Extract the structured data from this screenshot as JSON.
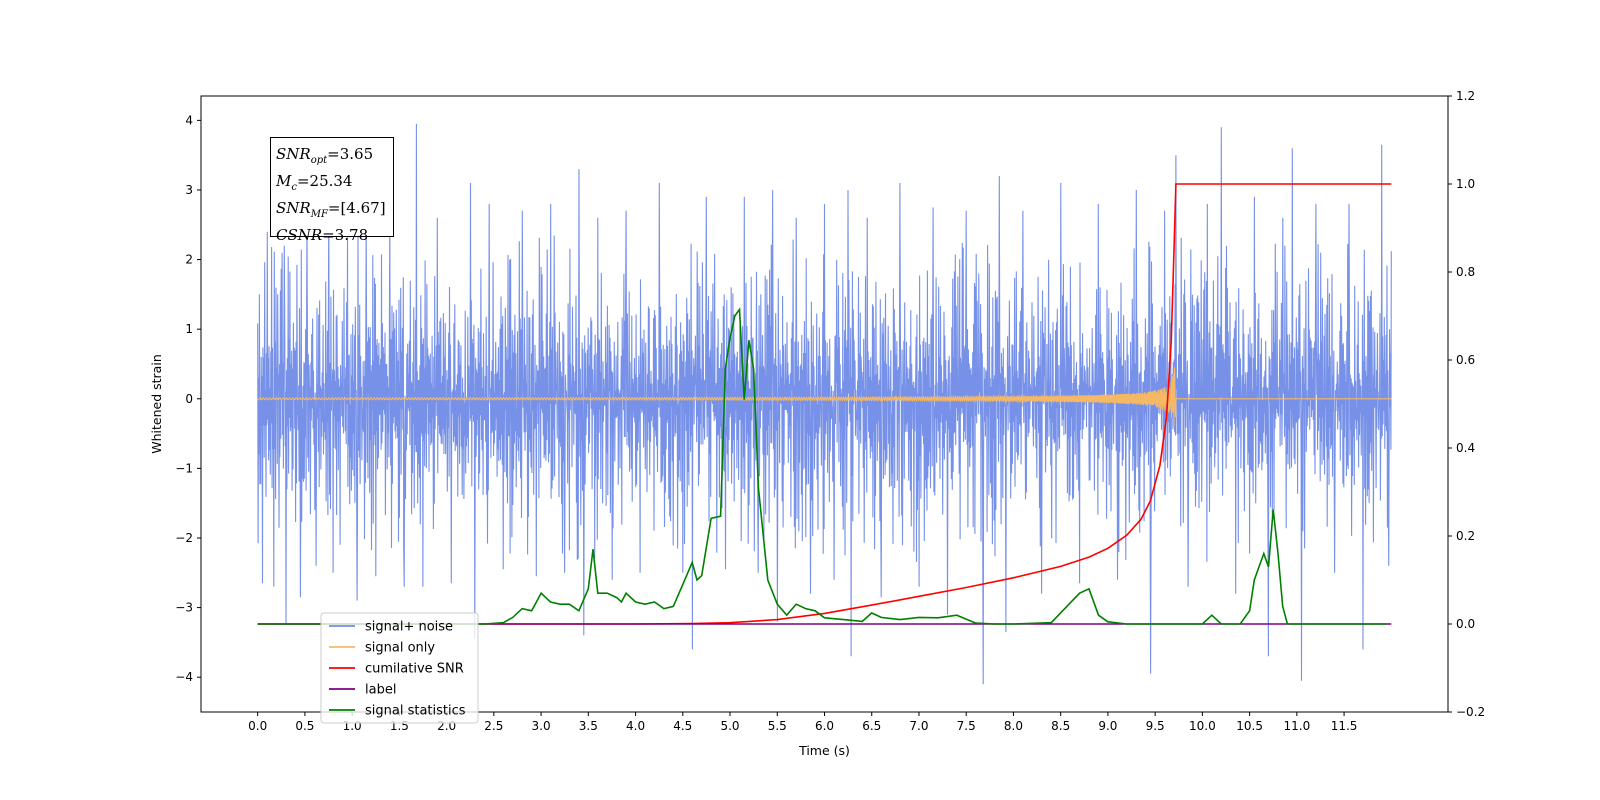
{
  "chart_data": {
    "type": "line",
    "xlabel": "Time (s)",
    "ylabel": "Whitened strain",
    "ylabel_right": "",
    "xlim": [
      -0.6,
      12.6
    ],
    "ylim": [
      -4.5,
      4.35
    ],
    "ylim_right": [
      -0.2,
      1.2
    ],
    "x_ticks": [
      0.0,
      0.5,
      1.0,
      1.5,
      2.0,
      2.5,
      3.0,
      3.5,
      4.0,
      4.5,
      5.0,
      5.5,
      6.0,
      6.5,
      7.0,
      7.5,
      8.0,
      8.5,
      9.0,
      9.5,
      10.0,
      10.5,
      11.0,
      11.5
    ],
    "x_tick_labels": [
      "0.0",
      "0.5",
      "1.0",
      "1.5",
      "2.0",
      "2.5",
      "3.0",
      "3.5",
      "4.0",
      "4.5",
      "5.0",
      "5.5",
      "6.0",
      "6.5",
      "7.0",
      "7.5",
      "8.0",
      "8.5",
      "9.0",
      "9.5",
      "10.0",
      "10.5",
      "11.0",
      "11.5"
    ],
    "y_ticks": [
      -4,
      -3,
      -2,
      -1,
      0,
      1,
      2,
      3,
      4
    ],
    "y_tick_labels": [
      "−4",
      "−3",
      "−2",
      "−1",
      "0",
      "1",
      "2",
      "3",
      "4"
    ],
    "y_right_ticks": [
      -0.2,
      0.0,
      0.2,
      0.4,
      0.6,
      0.8,
      1.0,
      1.2
    ],
    "y_right_tick_labels": [
      "−0.2",
      "0.0",
      "0.2",
      "0.4",
      "0.6",
      "0.8",
      "1.0",
      "1.2"
    ],
    "legend_position": "lower-left",
    "series": [
      {
        "name": "signal+ noise",
        "axis": "left",
        "color": "#6f8be6",
        "style": "dense-noise",
        "x_range": [
          0.0,
          12.0
        ],
        "spikes": [
          [
            0.02,
            1.5
          ],
          [
            0.05,
            -2.65
          ],
          [
            0.1,
            2.4
          ],
          [
            0.17,
            -2.7
          ],
          [
            0.28,
            2.2
          ],
          [
            0.3,
            -3.25
          ],
          [
            0.45,
            -2.85
          ],
          [
            0.52,
            2.5
          ],
          [
            0.62,
            -2.4
          ],
          [
            0.75,
            2.9
          ],
          [
            0.8,
            -2.5
          ],
          [
            0.95,
            2.4
          ],
          [
            1.05,
            -2.9
          ],
          [
            1.15,
            2.5
          ],
          [
            1.25,
            -2.55
          ],
          [
            1.4,
            2.6
          ],
          [
            1.55,
            -2.7
          ],
          [
            1.68,
            3.95
          ],
          [
            1.75,
            -2.7
          ],
          [
            1.9,
            2.6
          ],
          [
            2.05,
            -2.65
          ],
          [
            2.25,
            3.1
          ],
          [
            2.3,
            -3.45
          ],
          [
            2.45,
            2.8
          ],
          [
            2.6,
            -2.45
          ],
          [
            2.8,
            2.7
          ],
          [
            2.95,
            -2.55
          ],
          [
            3.1,
            2.8
          ],
          [
            3.25,
            -2.5
          ],
          [
            3.4,
            3.3
          ],
          [
            3.45,
            -3.4
          ],
          [
            3.6,
            2.6
          ],
          [
            3.75,
            -2.6
          ],
          [
            3.9,
            2.7
          ],
          [
            4.05,
            -2.5
          ],
          [
            4.25,
            3.1
          ],
          [
            4.5,
            -2.5
          ],
          [
            4.6,
            -3.6
          ],
          [
            4.75,
            2.9
          ],
          [
            4.95,
            -2.45
          ],
          [
            5.15,
            2.9
          ],
          [
            5.3,
            -2.5
          ],
          [
            5.45,
            3.0
          ],
          [
            5.5,
            -3.2
          ],
          [
            5.7,
            2.6
          ],
          [
            5.85,
            -2.8
          ],
          [
            6.0,
            2.8
          ],
          [
            6.1,
            -2.6
          ],
          [
            6.25,
            3.0
          ],
          [
            6.28,
            -3.7
          ],
          [
            6.45,
            2.6
          ],
          [
            6.6,
            -2.85
          ],
          [
            6.8,
            3.1
          ],
          [
            7.0,
            -2.7
          ],
          [
            7.15,
            2.75
          ],
          [
            7.3,
            -3.1
          ],
          [
            7.5,
            2.7
          ],
          [
            7.68,
            -4.1
          ],
          [
            7.85,
            3.2
          ],
          [
            7.92,
            -3.35
          ],
          [
            8.1,
            2.7
          ],
          [
            8.3,
            -2.8
          ],
          [
            8.5,
            3.1
          ],
          [
            8.7,
            -2.65
          ],
          [
            8.9,
            2.8
          ],
          [
            9.1,
            -2.6
          ],
          [
            9.3,
            3.0
          ],
          [
            9.45,
            -3.95
          ],
          [
            9.6,
            2.7
          ],
          [
            9.72,
            3.5
          ],
          [
            9.85,
            -2.7
          ],
          [
            10.05,
            2.8
          ],
          [
            10.2,
            3.9
          ],
          [
            10.35,
            -2.8
          ],
          [
            10.55,
            2.9
          ],
          [
            10.7,
            -3.7
          ],
          [
            10.85,
            2.6
          ],
          [
            10.95,
            3.6
          ],
          [
            11.05,
            -4.05
          ],
          [
            11.2,
            2.8
          ],
          [
            11.4,
            -2.5
          ],
          [
            11.55,
            2.8
          ],
          [
            11.7,
            -3.6
          ],
          [
            11.9,
            3.65
          ],
          [
            11.97,
            -2.4
          ]
        ]
      },
      {
        "name": "signal only",
        "axis": "left",
        "color": "#f5b865",
        "style": "chirp",
        "x_range": [
          0.0,
          12.0
        ],
        "merger_time": 9.72,
        "peak_amplitude": 0.8
      },
      {
        "name": "cumilative SNR",
        "axis": "right",
        "color": "#ff0000",
        "x": [
          0.0,
          4.0,
          4.6,
          5.0,
          5.5,
          6.0,
          6.5,
          7.0,
          7.5,
          8.0,
          8.5,
          8.8,
          9.0,
          9.2,
          9.35,
          9.45,
          9.55,
          9.62,
          9.67,
          9.7,
          9.72,
          10.0,
          11.0,
          11.5,
          12.0
        ],
        "values": [
          0.0,
          0.0,
          0.001,
          0.003,
          0.01,
          0.024,
          0.043,
          0.063,
          0.083,
          0.105,
          0.131,
          0.152,
          0.172,
          0.202,
          0.238,
          0.28,
          0.36,
          0.47,
          0.64,
          0.85,
          1.0,
          1.0,
          1.0,
          1.0,
          1.0
        ]
      },
      {
        "name": "label",
        "axis": "right",
        "color": "#800080",
        "x": [
          0.0,
          12.0
        ],
        "values": [
          0.0,
          0.0
        ]
      },
      {
        "name": "signal statistics",
        "axis": "right",
        "color": "#008000",
        "x": [
          0.0,
          2.4,
          2.6,
          2.7,
          2.8,
          2.9,
          2.95,
          3.0,
          3.1,
          3.2,
          3.3,
          3.4,
          3.5,
          3.55,
          3.6,
          3.7,
          3.8,
          3.85,
          3.9,
          4.0,
          4.1,
          4.2,
          4.3,
          4.4,
          4.5,
          4.6,
          4.65,
          4.7,
          4.8,
          4.9,
          4.95,
          5.0,
          5.05,
          5.1,
          5.15,
          5.2,
          5.25,
          5.3,
          5.4,
          5.5,
          5.6,
          5.7,
          5.8,
          5.9,
          6.0,
          6.2,
          6.4,
          6.5,
          6.6,
          6.8,
          7.0,
          7.2,
          7.4,
          7.6,
          7.8,
          8.0,
          8.4,
          8.7,
          8.8,
          8.9,
          9.0,
          9.2,
          9.4,
          10.0,
          10.1,
          10.2,
          10.4,
          10.5,
          10.55,
          10.65,
          10.7,
          10.75,
          10.8,
          10.85,
          10.9,
          10.95,
          11.0,
          11.5,
          11.95
        ],
        "values": [
          0.0,
          0.0,
          0.003,
          0.015,
          0.035,
          0.03,
          0.05,
          0.07,
          0.05,
          0.045,
          0.045,
          0.03,
          0.08,
          0.17,
          0.07,
          0.07,
          0.06,
          0.05,
          0.07,
          0.05,
          0.045,
          0.05,
          0.035,
          0.04,
          0.09,
          0.14,
          0.1,
          0.11,
          0.24,
          0.245,
          0.58,
          0.65,
          0.7,
          0.715,
          0.51,
          0.645,
          0.58,
          0.31,
          0.1,
          0.045,
          0.02,
          0.045,
          0.035,
          0.03,
          0.014,
          0.01,
          0.006,
          0.025,
          0.015,
          0.01,
          0.015,
          0.014,
          0.02,
          0.002,
          0.0,
          0.0,
          0.003,
          0.07,
          0.08,
          0.02,
          0.005,
          0.0,
          0.0,
          0.0,
          0.02,
          0.0,
          0.0,
          0.03,
          0.1,
          0.16,
          0.13,
          0.26,
          0.16,
          0.04,
          0.0,
          0.0,
          0.0,
          0.0,
          0.0
        ]
      }
    ],
    "legend": [
      {
        "label": "signal+ noise",
        "color": "#6f8be6"
      },
      {
        "label": "signal only",
        "color": "#f5b865"
      },
      {
        "label": "cumilative SNR",
        "color": "#ff0000"
      },
      {
        "label": "label",
        "color": "#800080"
      },
      {
        "label": "signal statistics",
        "color": "#008000"
      }
    ],
    "annotation": {
      "snr_opt_sym": "SNR",
      "snr_opt_sub": "opt",
      "snr_opt_val": "=3.65",
      "mc_sym": "M",
      "mc_sub": "c",
      "mc_val": "=25.34",
      "snr_mf_sym": "SNR",
      "snr_mf_sub": "MF",
      "snr_mf_val": "=[4.67]",
      "csnr_sym": "CSNR",
      "csnr_val": "=3.78"
    }
  }
}
